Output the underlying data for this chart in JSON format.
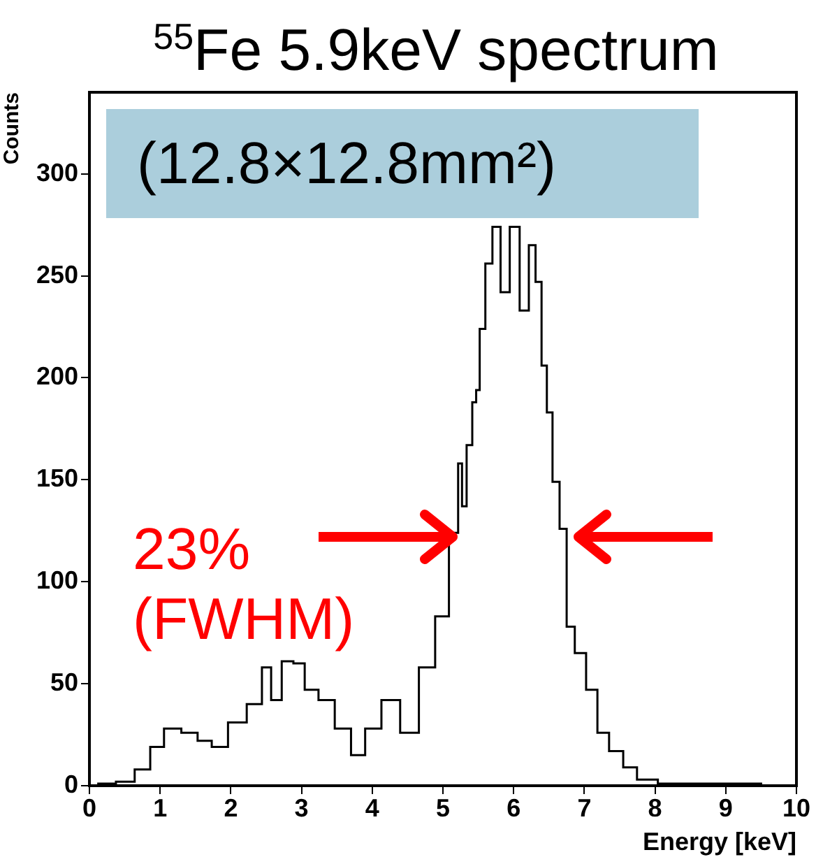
{
  "chart_data": {
    "type": "step",
    "title": "$^{55}$Fe 5.9keV spectrum",
    "xlabel": "Energy [keV]",
    "ylabel": "Counts",
    "x": [
      0,
      0.25,
      0.5,
      0.78,
      0.94,
      1.17,
      1.43,
      1.63,
      1.83,
      2.09,
      2.36,
      2.52,
      2.62,
      2.82,
      2.95,
      3.14,
      3.34,
      3.6,
      3.8,
      4.0,
      4.26,
      4.53,
      4.79,
      4.99,
      5.18,
      5.25,
      5.29,
      5.38,
      5.45,
      5.49,
      5.55,
      5.65,
      5.75,
      5.88,
      6.01,
      6.16,
      6.27,
      6.35,
      6.44,
      6.5,
      6.6,
      6.7,
      6.8,
      6.93,
      7.12,
      7.25,
      7.45,
      7.65,
      7.84,
      8.24,
      9,
      10
    ],
    "values": [
      0,
      1,
      2,
      8,
      19,
      28,
      26,
      22,
      19,
      31,
      40,
      58,
      42,
      61,
      60,
      47,
      42,
      28,
      15,
      28,
      42,
      26,
      58,
      83,
      124,
      158,
      137,
      167,
      188,
      194,
      224,
      256,
      274,
      242,
      274,
      233,
      265,
      247,
      206,
      183,
      149,
      126,
      78,
      65,
      47,
      26,
      17,
      9,
      3,
      1,
      1,
      0
    ],
    "color": "#000000",
    "xlim": [
      0,
      10
    ],
    "xticks": [
      0,
      1,
      2,
      3,
      4,
      5,
      6,
      7,
      8,
      9,
      10
    ],
    "ylim": [
      0,
      340
    ],
    "yticks": [
      0,
      50,
      100,
      150,
      200,
      250,
      300
    ],
    "annotations": [
      "(12.8×12.8mm²)",
      "23%\n(FWHM)"
    ]
  }
}
